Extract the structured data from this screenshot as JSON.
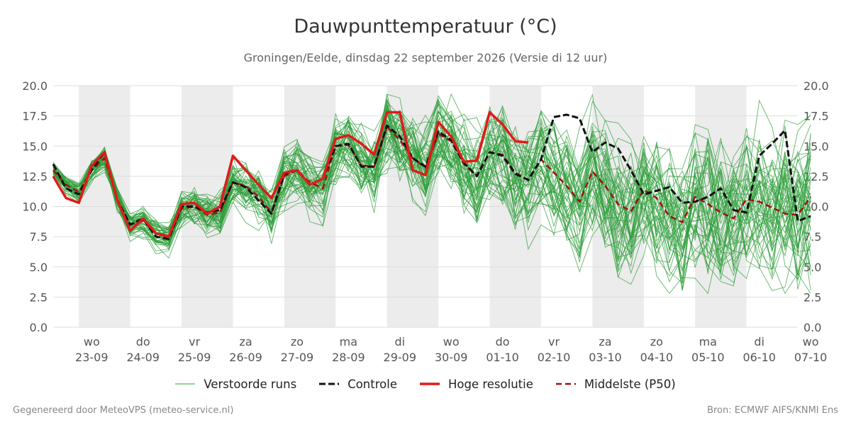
{
  "title": "Dauwpunttemperatuur (°C)",
  "subtitle": "Groningen/Eelde, dinsdag 22 september 2026 (Versie di 12 uur)",
  "footer": {
    "left": "Gegenereerd door MeteoVPS (meteo-service.nl)",
    "right": "Bron: ECMWF AIFS/KNMI Ens"
  },
  "legend": [
    {
      "label": "Verstoorde runs",
      "style": "ens"
    },
    {
      "label": "Controle",
      "style": "control"
    },
    {
      "label": "Hoge resolutie",
      "style": "hres"
    },
    {
      "label": "Middelste (P50)",
      "style": "p50"
    }
  ],
  "chart_data": {
    "type": "line",
    "ylim": [
      0,
      20
    ],
    "yticks": [
      "0.0",
      "2.5",
      "5.0",
      "7.5",
      "10.0",
      "12.5",
      "15.0",
      "17.5",
      "20.0"
    ],
    "xlim_days": [
      0,
      14.5
    ],
    "x_day_labels": [
      {
        "day": "wo",
        "date": "23-09"
      },
      {
        "day": "do",
        "date": "24-09"
      },
      {
        "day": "vr",
        "date": "25-09"
      },
      {
        "day": "za",
        "date": "26-09"
      },
      {
        "day": "zo",
        "date": "27-09"
      },
      {
        "day": "ma",
        "date": "28-09"
      },
      {
        "day": "di",
        "date": "29-09"
      },
      {
        "day": "wo",
        "date": "30-09"
      },
      {
        "day": "do",
        "date": "01-10"
      },
      {
        "day": "vr",
        "date": "02-10"
      },
      {
        "day": "za",
        "date": "03-10"
      },
      {
        "day": "zo",
        "date": "04-10"
      },
      {
        "day": "ma",
        "date": "05-10"
      },
      {
        "day": "di",
        "date": "06-10"
      },
      {
        "day": "wo",
        "date": "07-10"
      }
    ],
    "colors": {
      "ensemble": "#2e9e3a",
      "control": "#111111",
      "hres": "#e11a1a",
      "p50": "#a01010",
      "weekend_band": "#ececec",
      "grid": "#dddddd"
    },
    "ensemble_member_count": 50,
    "series": [
      {
        "name": "Controle",
        "x_step_days": 0.25,
        "values": [
          13.5,
          11.5,
          11.0,
          13.0,
          14.5,
          10.5,
          8.5,
          9.0,
          7.5,
          7.3,
          10.0,
          10.0,
          9.5,
          9.7,
          12.0,
          11.6,
          10.5,
          9.4,
          12.7,
          13.0,
          11.8,
          12.3,
          15.0,
          15.2,
          13.3,
          13.3,
          16.7,
          15.8,
          14.0,
          13.3,
          16.2,
          15.5,
          13.6,
          12.5,
          14.5,
          14.2,
          12.7,
          12.2,
          13.9,
          17.4,
          17.6,
          17.3,
          14.5,
          15.3,
          14.8,
          13.0,
          11.0,
          11.3,
          11.6,
          10.3,
          10.4,
          10.8,
          11.5,
          9.7,
          9.5,
          14.2,
          15.2,
          16.3,
          8.8,
          9.2
        ]
      },
      {
        "name": "Hoge resolutie",
        "x_step_days": 0.25,
        "values": [
          12.5,
          10.7,
          10.3,
          13.4,
          14.5,
          10.5,
          8.0,
          9.0,
          7.8,
          7.5,
          10.2,
          10.3,
          9.4,
          10.0,
          14.2,
          13.0,
          11.8,
          10.7,
          12.8,
          13.0,
          11.8,
          12.3,
          15.6,
          15.9,
          15.2,
          14.3,
          17.8,
          17.8,
          13.0,
          12.6,
          17.0,
          15.8,
          13.7,
          13.8,
          17.8,
          16.8,
          15.4,
          15.3
        ]
      },
      {
        "name": "Middelste (P50)",
        "x_step_days": 0.25,
        "values": [
          13.0,
          11.8,
          11.2,
          13.0,
          14.0,
          10.6,
          8.5,
          8.8,
          7.8,
          7.4,
          9.8,
          10.0,
          9.3,
          9.5,
          12.0,
          11.7,
          10.8,
          9.5,
          12.5,
          13.0,
          12.0,
          11.5,
          15.0,
          15.1,
          13.4,
          13.3,
          16.6,
          15.5,
          14.0,
          13.2,
          16.0,
          15.4,
          13.5,
          12.6,
          14.5,
          14.3,
          12.8,
          12.2,
          13.9,
          12.8,
          11.7,
          10.4,
          12.9,
          11.7,
          10.2,
          9.6,
          11.4,
          10.7,
          9.2,
          8.7,
          10.8,
          10.2,
          9.5,
          9.0,
          10.6,
          10.4,
          9.9,
          9.4,
          9.3,
          10.8
        ]
      }
    ]
  }
}
